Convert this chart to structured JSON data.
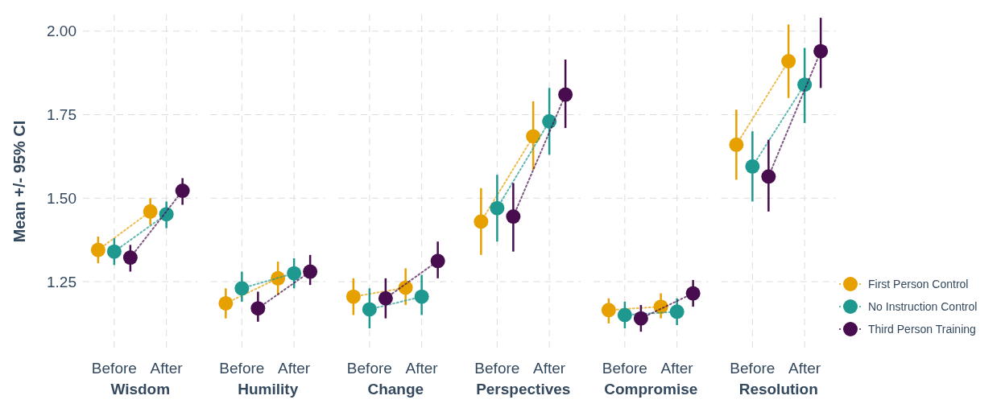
{
  "chart_data": [
    {
      "type": "line",
      "xlabel": "Wisdom",
      "ylabel": "Mean +/- 95% CI",
      "categories": [
        "Before",
        "After"
      ],
      "ylim": [
        1.05,
        2.05
      ],
      "yticks": [
        1.25,
        {
          "value": 1.5,
          "label": "1.50"
        },
        1.75,
        {
          "value": 2,
          "label": "2.00"
        }
      ],
      "grid": true,
      "marker": "circle",
      "line_style": "dotted",
      "series": [
        {
          "color": "#e6a000",
          "values": [
            1.345,
            1.46
          ],
          "errors": [
            [
              1.305,
              1.385
            ],
            [
              1.42,
              1.5
            ]
          ]
        },
        {
          "color": "#1f9990",
          "values": [
            1.34,
            1.452
          ],
          "errors": [
            [
              1.3,
              1.38
            ],
            [
              1.41,
              1.49
            ]
          ]
        },
        {
          "color": "#470d4f",
          "values": [
            1.322,
            1.522
          ],
          "errors": [
            [
              1.28,
              1.36
            ],
            [
              1.48,
              1.56
            ]
          ]
        }
      ]
    },
    {
      "type": "line",
      "xlabel": "Humility",
      "categories": [
        "Before",
        "After"
      ],
      "ylim": [
        1.05,
        2.05
      ],
      "yticks": [
        {
          "value": 1.25,
          "label": null
        },
        {
          "value": 1.5,
          "label": null
        },
        {
          "value": 1.75,
          "label": null
        },
        {
          "value": 2,
          "label": null
        }
      ],
      "tick_labels": "x",
      "grid": true,
      "marker": "circle",
      "line_style": "dotted",
      "series": [
        {
          "color": "#e6a000",
          "values": [
            1.185,
            1.26
          ],
          "errors": [
            [
              1.14,
              1.23
            ],
            [
              1.21,
              1.31
            ]
          ]
        },
        {
          "color": "#1f9990",
          "values": [
            1.23,
            1.275
          ],
          "errors": [
            [
              1.19,
              1.28
            ],
            [
              1.23,
              1.32
            ]
          ]
        },
        {
          "color": "#470d4f",
          "values": [
            1.17,
            1.28
          ],
          "errors": [
            [
              1.13,
              1.22
            ],
            [
              1.24,
              1.33
            ]
          ]
        }
      ]
    },
    {
      "type": "line",
      "xlabel": "Change",
      "categories": [
        "Before",
        "After"
      ],
      "ylim": [
        1.05,
        2.05
      ],
      "yticks": [
        {
          "value": 1.25,
          "label": null
        },
        {
          "value": 1.5,
          "label": null
        },
        {
          "value": 1.75,
          "label": null
        },
        {
          "value": 2,
          "label": null
        }
      ],
      "tick_labels": "x",
      "grid": true,
      "marker": "circle",
      "line_style": "dotted",
      "series": [
        {
          "color": "#e6a000",
          "values": [
            1.205,
            1.232
          ],
          "errors": [
            [
              1.15,
              1.26
            ],
            [
              1.18,
              1.29
            ]
          ]
        },
        {
          "color": "#1f9990",
          "values": [
            1.167,
            1.205
          ],
          "errors": [
            [
              1.11,
              1.23
            ],
            [
              1.15,
              1.27
            ]
          ]
        },
        {
          "color": "#470d4f",
          "values": [
            1.2,
            1.312
          ],
          "errors": [
            [
              1.14,
              1.26
            ],
            [
              1.26,
              1.37
            ]
          ]
        }
      ]
    },
    {
      "type": "line",
      "xlabel": "Perspectives",
      "categories": [
        "Before",
        "After"
      ],
      "ylim": [
        1.05,
        2.05
      ],
      "yticks": [
        {
          "value": 1.25,
          "label": null
        },
        {
          "value": 1.5,
          "label": null
        },
        {
          "value": 1.75,
          "label": null
        },
        {
          "value": 2,
          "label": null
        }
      ],
      "tick_labels": "x",
      "grid": true,
      "marker": "circle",
      "line_style": "dotted",
      "series": [
        {
          "color": "#e6a000",
          "values": [
            1.43,
            1.685
          ],
          "errors": [
            [
              1.33,
              1.53
            ],
            [
              1.585,
              1.79
            ]
          ]
        },
        {
          "color": "#1f9990",
          "values": [
            1.47,
            1.73
          ],
          "errors": [
            [
              1.37,
              1.57
            ],
            [
              1.63,
              1.83
            ]
          ]
        },
        {
          "color": "#470d4f",
          "values": [
            1.445,
            1.81
          ],
          "errors": [
            [
              1.34,
              1.545
            ],
            [
              1.71,
              1.915
            ]
          ]
        }
      ]
    },
    {
      "type": "line",
      "xlabel": "Compromise",
      "categories": [
        "Before",
        "After"
      ],
      "ylim": [
        1.05,
        2.05
      ],
      "yticks": [
        {
          "value": 1.25,
          "label": null
        },
        {
          "value": 1.5,
          "label": null
        },
        {
          "value": 1.75,
          "label": null
        },
        {
          "value": 2,
          "label": null
        }
      ],
      "tick_labels": "x",
      "grid": true,
      "marker": "circle",
      "line_style": "dotted",
      "series": [
        {
          "color": "#e6a000",
          "values": [
            1.165,
            1.175
          ],
          "errors": [
            [
              1.125,
              1.2
            ],
            [
              1.14,
              1.215
            ]
          ]
        },
        {
          "color": "#1f9990",
          "values": [
            1.15,
            1.16
          ],
          "errors": [
            [
              1.11,
              1.19
            ],
            [
              1.12,
              1.2
            ]
          ]
        },
        {
          "color": "#470d4f",
          "values": [
            1.14,
            1.215
          ],
          "errors": [
            [
              1.1,
              1.18
            ],
            [
              1.175,
              1.255
            ]
          ]
        }
      ]
    },
    {
      "type": "line",
      "xlabel": "Resolution",
      "categories": [
        "Before",
        "After"
      ],
      "ylim": [
        1.05,
        2.05
      ],
      "yticks": [
        {
          "value": 1.25,
          "label": null
        },
        {
          "value": 1.5,
          "label": null
        },
        {
          "value": 1.75,
          "label": null
        },
        {
          "value": 2,
          "label": null
        }
      ],
      "tick_labels": "x",
      "grid": true,
      "marker": "circle",
      "line_style": "dotted",
      "legend": "right",
      "series": [
        {
          "name": "First Person Control",
          "color": "#e6a000",
          "values": [
            1.66,
            1.91
          ],
          "errors": [
            [
              1.555,
              1.765
            ],
            [
              1.8,
              2.02
            ]
          ]
        },
        {
          "name": "No Instruction Control",
          "color": "#1f9990",
          "values": [
            1.595,
            1.84
          ],
          "errors": [
            [
              1.49,
              1.7
            ],
            [
              1.725,
              1.95
            ]
          ]
        },
        {
          "name": "Third Person Training",
          "color": "#470d4f",
          "values": [
            1.565,
            1.94
          ],
          "errors": [
            [
              1.46,
              1.675
            ],
            [
              1.83,
              2.04
            ]
          ]
        }
      ]
    }
  ]
}
